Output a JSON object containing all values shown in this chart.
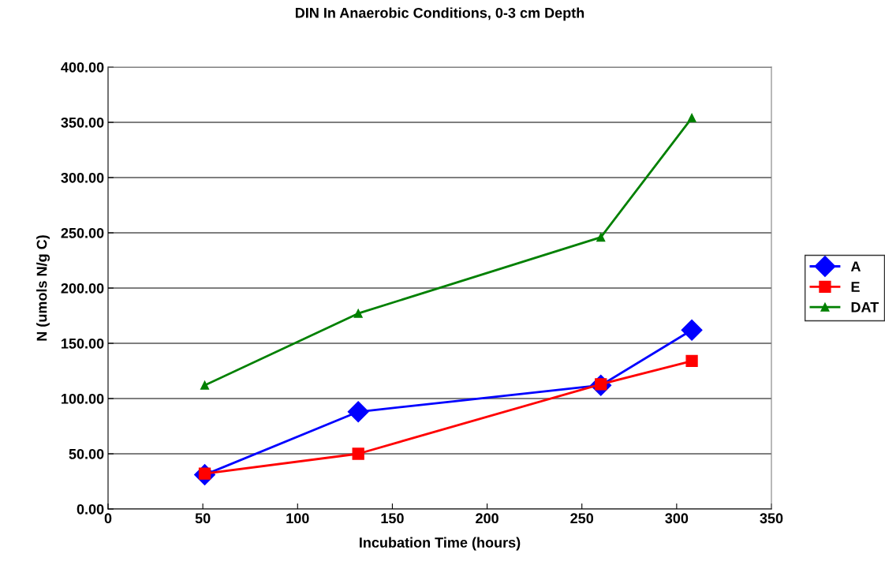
{
  "chart_data": {
    "type": "line",
    "title": "DIN In Anaerobic Conditions, 0-3 cm Depth",
    "xlabel": "Incubation Time (hours)",
    "ylabel": "N (umols N/g C)",
    "x": [
      51,
      132,
      260,
      308
    ],
    "series": [
      {
        "name": "A",
        "color": "#0000ff",
        "marker": "diamond",
        "values": [
          31,
          88,
          112,
          162
        ]
      },
      {
        "name": "E",
        "color": "#ff0000",
        "marker": "square",
        "values": [
          32,
          50,
          113,
          134
        ]
      },
      {
        "name": "DAT",
        "color": "#008000",
        "marker": "triangle",
        "values": [
          112,
          177,
          246,
          354
        ]
      }
    ],
    "xlim": [
      0,
      350
    ],
    "xticks": [
      0,
      50,
      100,
      150,
      200,
      250,
      300,
      350
    ],
    "ylim": [
      0,
      400
    ],
    "yticks": [
      {
        "value": 0,
        "label": "0.00"
      },
      {
        "value": 50,
        "label": "50.00"
      },
      {
        "value": 100,
        "label": "100.00"
      },
      {
        "value": 150,
        "label": "150.00"
      },
      {
        "value": 200,
        "label": "200.00"
      },
      {
        "value": 250,
        "label": "250.00"
      },
      {
        "value": 300,
        "label": "300.00"
      },
      {
        "value": 350,
        "label": "350.00"
      },
      {
        "value": 400,
        "label": "400.00"
      }
    ],
    "grid": "y",
    "legend": "right",
    "line_style": "solid"
  }
}
